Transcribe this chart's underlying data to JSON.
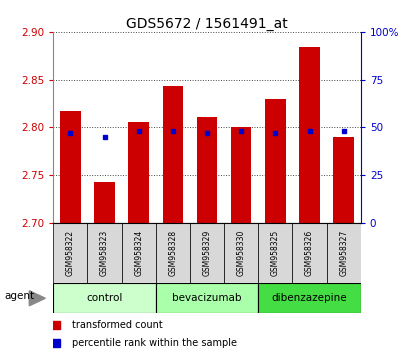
{
  "title": "GDS5672 / 1561491_at",
  "samples": [
    "GSM958322",
    "GSM958323",
    "GSM958324",
    "GSM958328",
    "GSM958329",
    "GSM958330",
    "GSM958325",
    "GSM958326",
    "GSM958327"
  ],
  "transformed_counts": [
    2.817,
    2.743,
    2.806,
    2.843,
    2.811,
    2.8,
    2.83,
    2.884,
    2.79
  ],
  "percentile_ranks": [
    47,
    45,
    48,
    48,
    47,
    48,
    47,
    48,
    48
  ],
  "ylim_left": [
    2.7,
    2.9
  ],
  "ylim_right": [
    0,
    100
  ],
  "yticks_left": [
    2.7,
    2.75,
    2.8,
    2.85,
    2.9
  ],
  "yticks_right": [
    0,
    25,
    50,
    75,
    100
  ],
  "ytick_labels_right": [
    "0",
    "25",
    "50",
    "75",
    "100%"
  ],
  "groups": [
    {
      "label": "control",
      "indices": [
        0,
        1,
        2
      ],
      "color": "#ccffcc"
    },
    {
      "label": "bevacizumab",
      "indices": [
        3,
        4,
        5
      ],
      "color": "#aaffaa"
    },
    {
      "label": "dibenzazepine",
      "indices": [
        6,
        7,
        8
      ],
      "color": "#44dd44"
    }
  ],
  "bar_color": "#cc0000",
  "percentile_color": "#0000cc",
  "bar_width": 0.6,
  "background_color": "#ffffff",
  "plot_bg_color": "#ffffff",
  "grid_color": "#000000",
  "tick_color_left": "#cc0000",
  "tick_color_right": "#0000cc",
  "agent_label": "agent",
  "legend_items": [
    {
      "label": "transformed count",
      "color": "#cc0000"
    },
    {
      "label": "percentile rank within the sample",
      "color": "#0000cc"
    }
  ],
  "sample_bg_color": "#d8d8d8",
  "title_fontsize": 10
}
